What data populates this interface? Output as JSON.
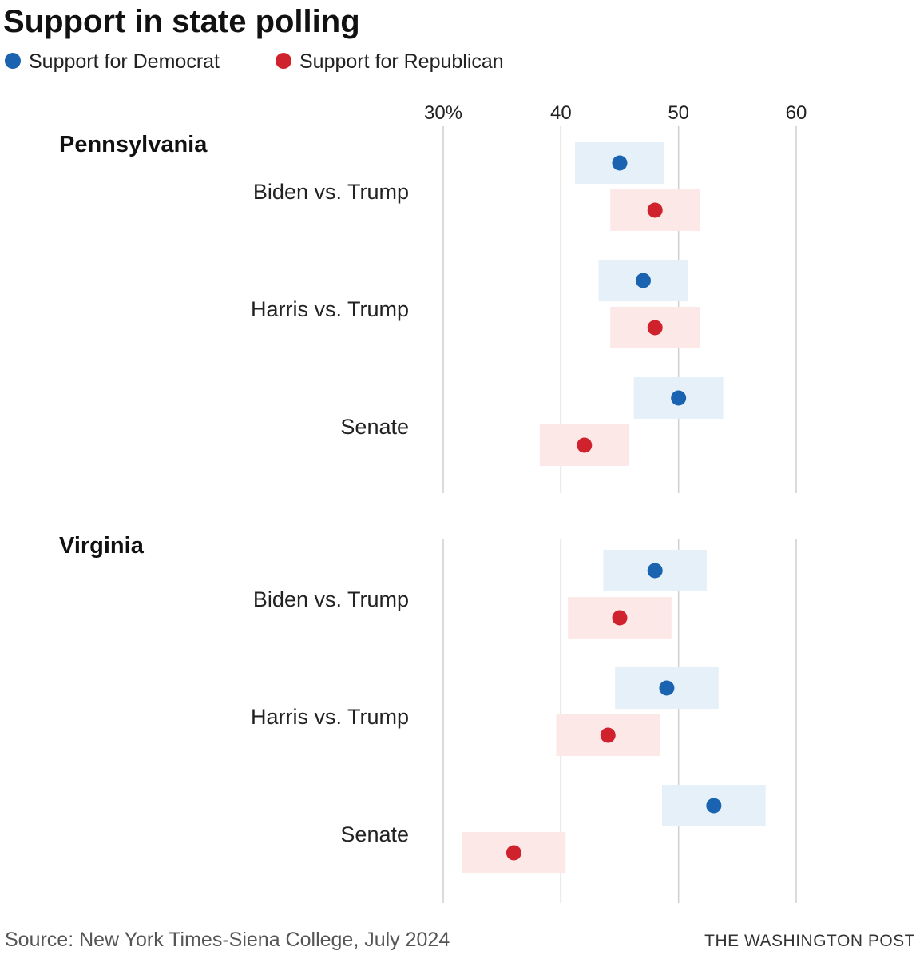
{
  "chart_data": {
    "type": "dot_range",
    "title": "Support in state polling",
    "legend": [
      {
        "key": "dem",
        "label": "Support for Democrat",
        "color": "#1a63b0"
      },
      {
        "key": "rep",
        "label": "Support for Republican",
        "color": "#d0222d"
      }
    ],
    "band_colors": {
      "dem": "#e6f0f9",
      "rep": "#fde8e8"
    },
    "axis": {
      "range": [
        30,
        60
      ],
      "ticks": [
        30,
        40,
        50,
        60
      ],
      "tick_labels": [
        "30%",
        "40",
        "50",
        "60"
      ]
    },
    "panels": [
      {
        "state": "Pennsylvania",
        "rows": [
          {
            "label": "Biden vs. Trump",
            "dem": {
              "value": 45,
              "low": 41.2,
              "high": 48.8
            },
            "rep": {
              "value": 48,
              "low": 44.2,
              "high": 51.8
            }
          },
          {
            "label": "Harris vs. Trump",
            "dem": {
              "value": 47,
              "low": 43.2,
              "high": 50.8
            },
            "rep": {
              "value": 48,
              "low": 44.2,
              "high": 51.8
            }
          },
          {
            "label": "Senate",
            "dem": {
              "value": 50,
              "low": 46.2,
              "high": 53.8
            },
            "rep": {
              "value": 42,
              "low": 38.2,
              "high": 45.8
            }
          }
        ]
      },
      {
        "state": "Virginia",
        "rows": [
          {
            "label": "Biden vs. Trump",
            "dem": {
              "value": 48,
              "low": 43.6,
              "high": 52.4
            },
            "rep": {
              "value": 45,
              "low": 40.6,
              "high": 49.4
            }
          },
          {
            "label": "Harris vs. Trump",
            "dem": {
              "value": 49,
              "low": 44.6,
              "high": 53.4
            },
            "rep": {
              "value": 44,
              "low": 39.6,
              "high": 48.4
            }
          },
          {
            "label": "Senate",
            "dem": {
              "value": 53,
              "low": 48.6,
              "high": 57.4
            },
            "rep": {
              "value": 36,
              "low": 31.6,
              "high": 40.4
            }
          }
        ]
      }
    ]
  },
  "footer": {
    "source": "Source: New York Times-Siena College, July 2024",
    "brand": "THE WASHINGTON POST"
  }
}
